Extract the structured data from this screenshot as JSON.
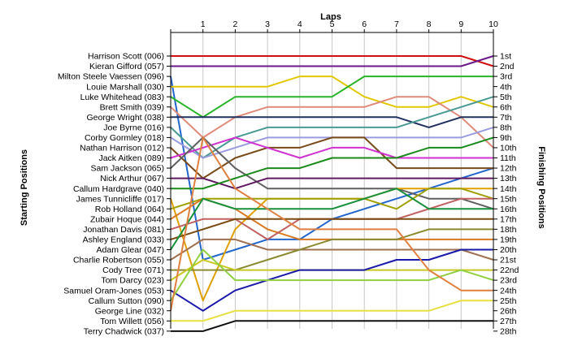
{
  "chart_data": {
    "type": "line",
    "title_top": "Laps",
    "ylabel_left": "Starting Positions",
    "ylabel_right": "Finishing Positions",
    "x": [
      0,
      1,
      2,
      3,
      4,
      5,
      6,
      7,
      8,
      9,
      10
    ],
    "xticklabels": [
      "1",
      "2",
      "3",
      "4",
      "5",
      "6",
      "7",
      "8",
      "9",
      "10"
    ],
    "ylim": [
      1,
      28
    ],
    "left_labels": [
      "Harrison Scott (006)",
      "Kieran Gifford (057)",
      "Milton Steele Vaessen (096)",
      "Louie Marshall (030)",
      "Luke Whitehead (083)",
      "Brett Smith (039)",
      "George Wright (038)",
      "Joe Byrne (016)",
      "Corby Gormley (018)",
      "Nathan Harrison (012)",
      "Jack Aitken (089)",
      "Sam Jackson (065)",
      "Nick Arthur (067)",
      "Callum Hardgrave (040)",
      "James Tunnicliffe (017)",
      "Rob Holland (064)",
      "Zubair Hoque (044)",
      "Jonathan Davis (081)",
      "Ashley England (033)",
      "Adam Glear (047)",
      "Charlie Robertson (055)",
      "Cody Tree (071)",
      "Tom Darcy (023)",
      "Samuel Oram-Jones (053)",
      "Callum Sutton (090)",
      "George Line (032)",
      "Tom Willett (056)",
      "Terry Chadwick (037)"
    ],
    "right_labels": [
      "1st",
      "2nd",
      "3rd",
      "4th",
      "5th",
      "6th",
      "7th",
      "8th",
      "9th",
      "10th",
      "11th",
      "12th",
      "13th",
      "14th",
      "15th",
      "16th",
      "17th",
      "18th",
      "19th",
      "20th",
      "21st",
      "22nd",
      "23rd",
      "24th",
      "25th",
      "26th",
      "27th",
      "28th"
    ],
    "series": [
      {
        "color": "#d01010",
        "values": [
          1,
          1,
          1,
          1,
          1,
          1,
          1,
          1,
          1,
          1,
          2
        ]
      },
      {
        "color": "#6a1a8a",
        "values": [
          2,
          2,
          2,
          2,
          2,
          2,
          2,
          2,
          2,
          2,
          1
        ]
      },
      {
        "color": "#2266cc",
        "values": [
          3,
          21,
          20,
          19,
          19,
          17,
          16,
          15,
          14,
          13,
          12
        ]
      },
      {
        "color": "#e2c800",
        "values": [
          4,
          4,
          4,
          4,
          3,
          3,
          5,
          6,
          6,
          5,
          6
        ]
      },
      {
        "color": "#28b428",
        "values": [
          5,
          7,
          5,
          5,
          5,
          5,
          3,
          3,
          3,
          3,
          3
        ]
      },
      {
        "color": "#e08a7a",
        "values": [
          6,
          9,
          7,
          6,
          6,
          6,
          6,
          5,
          5,
          7,
          10
        ]
      },
      {
        "color": "#203060",
        "values": [
          7,
          7,
          7,
          7,
          7,
          7,
          7,
          7,
          8,
          7,
          7
        ]
      },
      {
        "color": "#4a9a94",
        "values": [
          8,
          11,
          9,
          8,
          8,
          8,
          8,
          8,
          7,
          6,
          5
        ]
      },
      {
        "color": "#9a9ae0",
        "values": [
          9,
          11,
          10,
          9,
          9,
          9,
          9,
          9,
          9,
          9,
          8
        ]
      },
      {
        "color": "#7a4a1a",
        "values": [
          10,
          13,
          11,
          10,
          10,
          9,
          9,
          12,
          12,
          12,
          12
        ]
      },
      {
        "color": "#d030d0",
        "values": [
          11,
          10,
          9,
          10,
          11,
          10,
          10,
          11,
          11,
          11,
          11
        ]
      },
      {
        "color": "#606060",
        "values": [
          12,
          9,
          12,
          14,
          14,
          14,
          14,
          14,
          15,
          15,
          16
        ]
      },
      {
        "color": "#601860",
        "values": [
          13,
          13,
          14,
          13,
          13,
          13,
          13,
          13,
          13,
          13,
          13
        ]
      },
      {
        "color": "#1a8a1a",
        "values": [
          14,
          14,
          13,
          12,
          12,
          11,
          11,
          11,
          10,
          10,
          9
        ]
      },
      {
        "color": "#e0a000",
        "values": [
          15,
          25,
          18,
          15,
          15,
          15,
          15,
          14,
          14,
          14,
          14
        ]
      },
      {
        "color": "#a0a000",
        "values": [
          16,
          15,
          15,
          15,
          15,
          15,
          15,
          16,
          14,
          14,
          15
        ]
      },
      {
        "color": "#d87820",
        "values": [
          17,
          15,
          16,
          18,
          19,
          19,
          19,
          19,
          19,
          19,
          19
        ]
      },
      {
        "color": "#c06060",
        "values": [
          18,
          17,
          17,
          19,
          17,
          17,
          17,
          17,
          16,
          15,
          15
        ]
      },
      {
        "color": "#7a4a10",
        "values": [
          19,
          18,
          17,
          17,
          17,
          17,
          17,
          17,
          17,
          17,
          17
        ]
      },
      {
        "color": "#18903a",
        "values": [
          20,
          15,
          16,
          16,
          16,
          16,
          15,
          14,
          16,
          16,
          16
        ]
      },
      {
        "color": "#a07050",
        "values": [
          21,
          19,
          19,
          20,
          20,
          20,
          20,
          20,
          20,
          20,
          21
        ]
      },
      {
        "color": "#8a8a30",
        "values": [
          22,
          22,
          22,
          21,
          20,
          19,
          19,
          19,
          18,
          18,
          18
        ]
      },
      {
        "color": "#c8c820",
        "values": [
          23,
          21,
          22,
          22,
          22,
          22,
          22,
          22,
          22,
          22,
          22
        ]
      },
      {
        "color": "#1a1aaa",
        "values": [
          24,
          26,
          24,
          23,
          22,
          22,
          22,
          21,
          21,
          20,
          20
        ]
      },
      {
        "color": "#90d040",
        "values": [
          25,
          20,
          23,
          23,
          23,
          23,
          23,
          23,
          23,
          22,
          23
        ]
      },
      {
        "color": "#e08040",
        "values": [
          26,
          9,
          14,
          16,
          18,
          18,
          18,
          18,
          22,
          24,
          24
        ]
      },
      {
        "color": "#e8e040",
        "values": [
          27,
          27,
          26,
          26,
          26,
          26,
          26,
          26,
          26,
          25,
          25
        ]
      },
      {
        "color": "#101010",
        "values": [
          28,
          28,
          27,
          27,
          27,
          27,
          27,
          27,
          27,
          27,
          27
        ]
      }
    ]
  }
}
